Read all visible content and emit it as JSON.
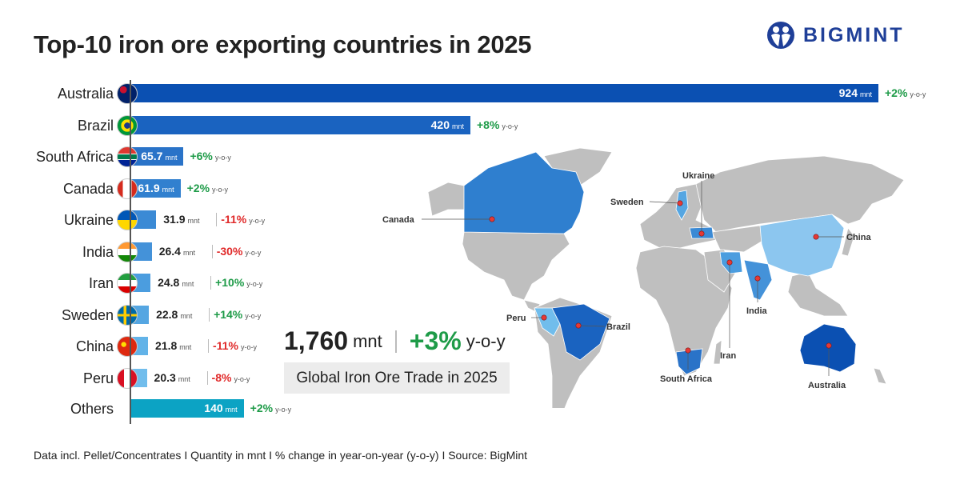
{
  "title": "Top-10 iron ore exporting countries in 2025",
  "logo": {
    "text": "BIGMINT",
    "color": "#1f3f98"
  },
  "colors": {
    "positive": "#1e9b48",
    "negative": "#e02a2a",
    "map_base": "#bfbfbf",
    "map_dot": "#e53935"
  },
  "chart_data": {
    "type": "bar",
    "orientation": "horizontal",
    "title": "Top-10 iron ore exporting countries in 2025",
    "unit": "mnt",
    "change_suffix": "y-o-y",
    "categories": [
      "Australia",
      "Brazil",
      "South Africa",
      "Canada",
      "Ukraine",
      "India",
      "Iran",
      "Sweden",
      "China",
      "Peru",
      "Others"
    ],
    "values": [
      924,
      420,
      65.7,
      61.9,
      31.9,
      26.4,
      24.8,
      22.8,
      21.8,
      20.3,
      140
    ],
    "value_labels": [
      "924",
      "420",
      "65.7",
      "61.9",
      "31.9",
      "26.4",
      "24.8",
      "22.8",
      "21.8",
      "20.3",
      "140"
    ],
    "changes": [
      "+2%",
      "+8%",
      "+6%",
      "+2%",
      "-11%",
      "-30%",
      "+10%",
      "+14%",
      "-11%",
      "-8%",
      "+2%"
    ],
    "bar_colors": [
      "#0b50b2",
      "#1a63c0",
      "#2a73c8",
      "#3180cf",
      "#3b8ad5",
      "#4492d9",
      "#4b9ddf",
      "#55a6e2",
      "#62b3e8",
      "#71bdec",
      "#0ca3c4"
    ],
    "flags": [
      "australia",
      "brazil",
      "south-africa",
      "canada",
      "ukraine",
      "india",
      "iran",
      "sweden",
      "china",
      "peru",
      null
    ]
  },
  "summary": {
    "total": "1,760",
    "unit": "mnt",
    "change": "+3%",
    "suffix": "y-o-y",
    "caption": "Global Iron Ore Trade in 2025"
  },
  "map": {
    "labels": [
      "Canada",
      "Ukraine",
      "Sweden",
      "China",
      "India",
      "Iran",
      "Peru",
      "Brazil",
      "South Africa",
      "Australia"
    ]
  },
  "footer": "Data incl. Pellet/Concentrates  I  Quantity in mnt  I  % change in year-on-year (y-o-y)  I  Source: BigMint"
}
